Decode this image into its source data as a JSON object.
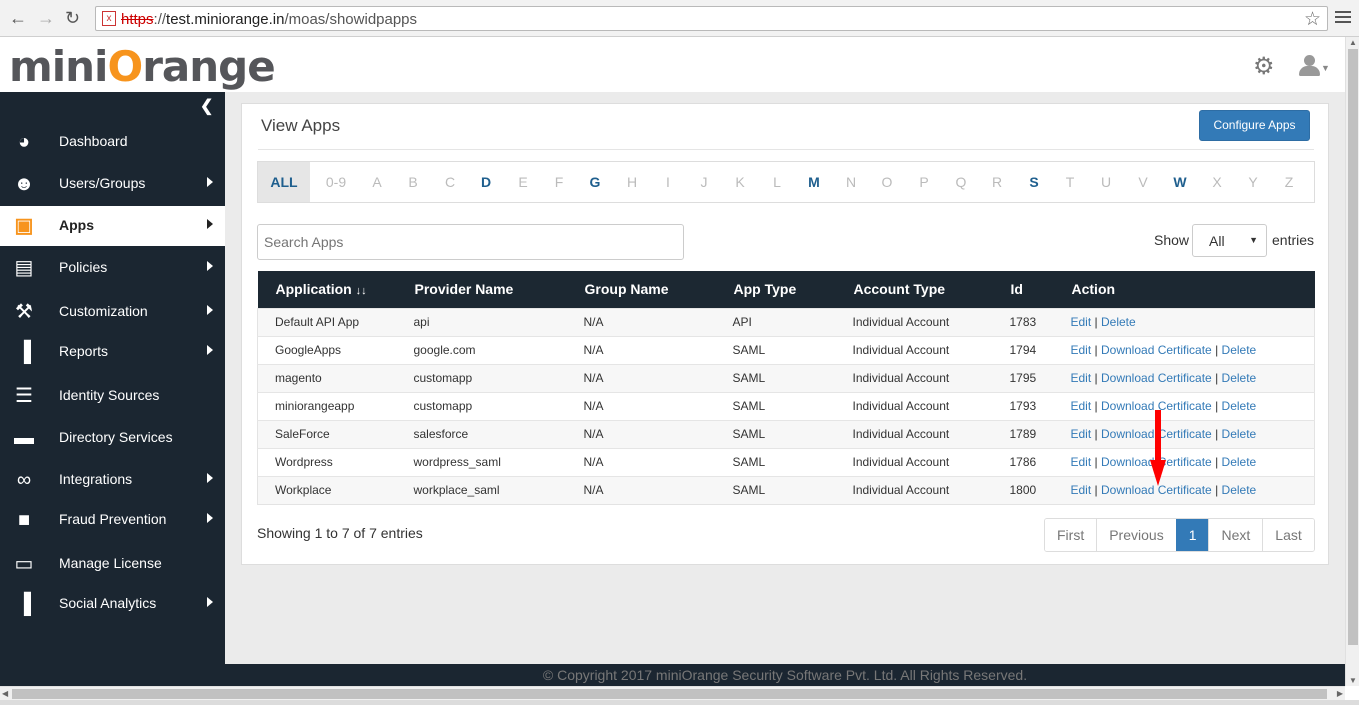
{
  "browser": {
    "url_scheme": "https",
    "url_rest": "://",
    "url_host": "test.miniorange.in",
    "url_path": "/moas/showidpapps"
  },
  "header": {
    "logo_left": "mini",
    "logo_o": "O",
    "logo_right": "range"
  },
  "sidebar": {
    "items": [
      {
        "label": "Dashboard",
        "icon": "dashboard-icon",
        "arrow": false,
        "active": false
      },
      {
        "label": "Users/Groups",
        "icon": "users-icon",
        "arrow": true,
        "active": false
      },
      {
        "label": "Apps",
        "icon": "cube-icon",
        "arrow": true,
        "active": true
      },
      {
        "label": "Policies",
        "icon": "book-icon",
        "arrow": true,
        "active": false
      },
      {
        "label": "Customization",
        "icon": "wrench-icon",
        "arrow": true,
        "active": false
      },
      {
        "label": "Reports",
        "icon": "bar-chart-icon",
        "arrow": true,
        "active": false
      },
      {
        "label": "Identity Sources",
        "icon": "list-icon",
        "arrow": false,
        "active": false
      },
      {
        "label": "Directory Services",
        "icon": "folder-icon",
        "arrow": false,
        "active": false
      },
      {
        "label": "Integrations",
        "icon": "link-icon",
        "arrow": true,
        "active": false
      },
      {
        "label": "Fraud Prevention",
        "icon": "lock-icon",
        "arrow": true,
        "active": false
      },
      {
        "label": "Manage License",
        "icon": "card-icon",
        "arrow": false,
        "active": false
      },
      {
        "label": "Social Analytics",
        "icon": "bar-chart-icon",
        "arrow": true,
        "active": false
      }
    ]
  },
  "main": {
    "title": "View Apps",
    "configure_button": "Configure Apps",
    "alphabet": [
      {
        "l": "ALL",
        "on": true
      },
      {
        "l": "0-9",
        "on": false
      },
      {
        "l": "A",
        "on": false
      },
      {
        "l": "B",
        "on": false
      },
      {
        "l": "C",
        "on": false
      },
      {
        "l": "D",
        "on": true
      },
      {
        "l": "E",
        "on": false
      },
      {
        "l": "F",
        "on": false
      },
      {
        "l": "G",
        "on": true
      },
      {
        "l": "H",
        "on": false
      },
      {
        "l": "I",
        "on": false
      },
      {
        "l": "J",
        "on": false
      },
      {
        "l": "K",
        "on": false
      },
      {
        "l": "L",
        "on": false
      },
      {
        "l": "M",
        "on": true
      },
      {
        "l": "N",
        "on": false
      },
      {
        "l": "O",
        "on": false
      },
      {
        "l": "P",
        "on": false
      },
      {
        "l": "Q",
        "on": false
      },
      {
        "l": "R",
        "on": false
      },
      {
        "l": "S",
        "on": true
      },
      {
        "l": "T",
        "on": false
      },
      {
        "l": "U",
        "on": false
      },
      {
        "l": "V",
        "on": false
      },
      {
        "l": "W",
        "on": true
      },
      {
        "l": "X",
        "on": false
      },
      {
        "l": "Y",
        "on": false
      },
      {
        "l": "Z",
        "on": false
      }
    ],
    "search_placeholder": "Search Apps",
    "show_label": "Show",
    "show_value": "All",
    "entries_label": "entries",
    "table": {
      "headers": [
        "Application",
        "Provider Name",
        "Group Name",
        "App Type",
        "Account Type",
        "Id",
        "Action"
      ],
      "sort_icon": "↓↓",
      "rows": [
        {
          "app": "Default API App",
          "provider": "api",
          "group": "N/A",
          "type": "API",
          "account": "Individual Account",
          "id": "1783",
          "cert": false
        },
        {
          "app": "GoogleApps",
          "provider": "google.com",
          "group": "N/A",
          "type": "SAML",
          "account": "Individual Account",
          "id": "1794",
          "cert": true
        },
        {
          "app": "magento",
          "provider": "customapp",
          "group": "N/A",
          "type": "SAML",
          "account": "Individual Account",
          "id": "1795",
          "cert": true
        },
        {
          "app": "miniorangeapp",
          "provider": "customapp",
          "group": "N/A",
          "type": "SAML",
          "account": "Individual Account",
          "id": "1793",
          "cert": true
        },
        {
          "app": "SaleForce",
          "provider": "salesforce",
          "group": "N/A",
          "type": "SAML",
          "account": "Individual Account",
          "id": "1789",
          "cert": true
        },
        {
          "app": "Wordpress",
          "provider": "wordpress_saml",
          "group": "N/A",
          "type": "SAML",
          "account": "Individual Account",
          "id": "1786",
          "cert": true
        },
        {
          "app": "Workplace",
          "provider": "workplace_saml",
          "group": "N/A",
          "type": "SAML",
          "account": "Individual Account",
          "id": "1800",
          "cert": true
        }
      ],
      "edit_label": "Edit",
      "download_label": "Download Certificate",
      "delete_label": "Delete",
      "separator": "|"
    },
    "info": "Showing 1 to 7 of 7 entries",
    "pagination": [
      "First",
      "Previous",
      "1",
      "Next",
      "Last"
    ],
    "current_page": "1"
  },
  "footer": {
    "text": "© Copyright 2017 miniOrange Security Software Pvt. Ltd. All Rights Reserved."
  },
  "colors": {
    "sidebar_bg": "#1b2631",
    "accent": "#337ab7",
    "logo_orange": "#f7941d",
    "annotation_arrow": "#ff0000"
  }
}
